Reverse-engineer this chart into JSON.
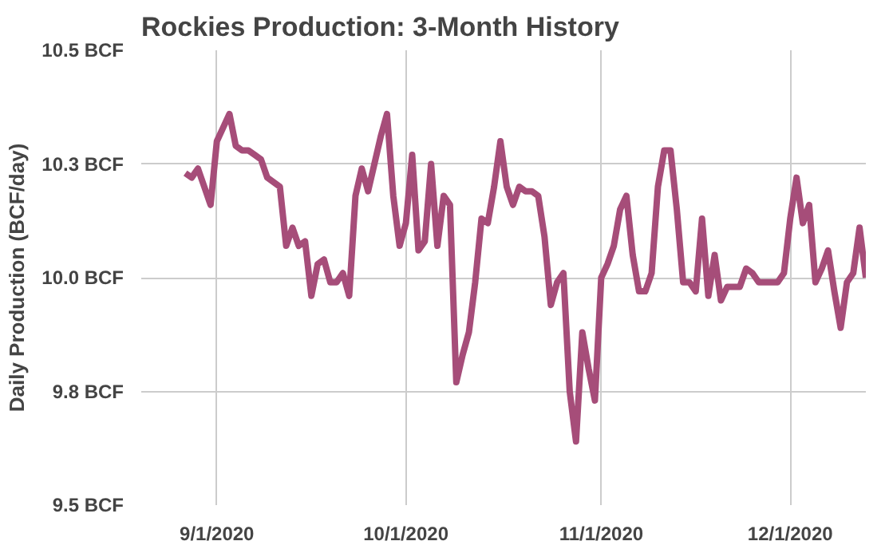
{
  "chart_data": {
    "type": "line",
    "title": "Rockies Production: 3-Month History",
    "ylabel": "Daily Production (BCF/day)",
    "x": [
      "2020-08-27",
      "2020-08-28",
      "2020-08-29",
      "2020-08-30",
      "2020-08-31",
      "2020-09-01",
      "2020-09-02",
      "2020-09-03",
      "2020-09-04",
      "2020-09-05",
      "2020-09-06",
      "2020-09-07",
      "2020-09-08",
      "2020-09-09",
      "2020-09-10",
      "2020-09-11",
      "2020-09-12",
      "2020-09-13",
      "2020-09-14",
      "2020-09-15",
      "2020-09-16",
      "2020-09-17",
      "2020-09-18",
      "2020-09-19",
      "2020-09-20",
      "2020-09-21",
      "2020-09-22",
      "2020-09-23",
      "2020-09-24",
      "2020-09-25",
      "2020-09-26",
      "2020-09-27",
      "2020-09-28",
      "2020-09-29",
      "2020-09-30",
      "2020-10-01",
      "2020-10-02",
      "2020-10-03",
      "2020-10-04",
      "2020-10-05",
      "2020-10-06",
      "2020-10-07",
      "2020-10-08",
      "2020-10-09",
      "2020-10-10",
      "2020-10-11",
      "2020-10-12",
      "2020-10-13",
      "2020-10-14",
      "2020-10-15",
      "2020-10-16",
      "2020-10-17",
      "2020-10-18",
      "2020-10-19",
      "2020-10-20",
      "2020-10-21",
      "2020-10-22",
      "2020-10-23",
      "2020-10-24",
      "2020-10-25",
      "2020-10-26",
      "2020-10-27",
      "2020-10-28",
      "2020-10-29",
      "2020-10-30",
      "2020-10-31",
      "2020-11-01",
      "2020-11-02",
      "2020-11-03",
      "2020-11-04",
      "2020-11-05",
      "2020-11-06",
      "2020-11-07",
      "2020-11-08",
      "2020-11-09",
      "2020-11-10",
      "2020-11-11",
      "2020-11-12",
      "2020-11-13",
      "2020-11-14",
      "2020-11-15",
      "2020-11-16",
      "2020-11-17",
      "2020-11-18",
      "2020-11-19",
      "2020-11-20",
      "2020-11-21",
      "2020-11-22",
      "2020-11-23",
      "2020-11-24",
      "2020-11-25",
      "2020-11-26",
      "2020-11-27",
      "2020-11-28",
      "2020-11-29",
      "2020-11-30",
      "2020-12-01",
      "2020-12-02",
      "2020-12-03",
      "2020-12-04",
      "2020-12-05",
      "2020-12-06",
      "2020-12-07",
      "2020-12-08",
      "2020-12-09",
      "2020-12-10",
      "2020-12-11",
      "2020-12-12",
      "2020-12-13"
    ],
    "series": [
      {
        "color": "#a64d79",
        "values": [
          10.23,
          10.22,
          10.24,
          10.2,
          10.16,
          10.3,
          10.33,
          10.36,
          10.29,
          10.28,
          10.28,
          10.27,
          10.26,
          10.22,
          10.21,
          10.2,
          10.07,
          10.11,
          10.07,
          10.08,
          9.96,
          10.03,
          10.04,
          9.99,
          9.99,
          10.01,
          9.96,
          10.18,
          10.24,
          10.19,
          10.25,
          10.31,
          10.36,
          10.18,
          10.07,
          10.12,
          10.27,
          10.06,
          10.08,
          10.25,
          10.07,
          10.18,
          10.16,
          9.77,
          9.83,
          9.88,
          9.99,
          10.13,
          10.12,
          10.2,
          10.3,
          10.2,
          10.16,
          10.2,
          10.19,
          10.19,
          10.18,
          10.09,
          9.94,
          9.99,
          10.01,
          9.75,
          9.64,
          9.88,
          9.8,
          9.73,
          10.0,
          10.03,
          10.07,
          10.15,
          10.18,
          10.05,
          9.97,
          9.97,
          10.01,
          10.2,
          10.28,
          10.28,
          10.15,
          9.99,
          9.99,
          9.97,
          10.13,
          9.96,
          10.05,
          9.95,
          9.98,
          9.98,
          9.98,
          10.02,
          10.01,
          9.99,
          9.99,
          9.99,
          9.99,
          10.01,
          10.13,
          10.22,
          10.12,
          10.16,
          9.99,
          10.02,
          10.06,
          9.97,
          9.89,
          9.99,
          10.01,
          10.11,
          10.0
        ]
      }
    ],
    "xlim": [
      "2020-08-20",
      "2020-12-13"
    ],
    "xticks": [
      {
        "value": "2020-09-01",
        "label": "9/1/2020"
      },
      {
        "value": "2020-10-01",
        "label": "10/1/2020"
      },
      {
        "value": "2020-11-01",
        "label": "11/1/2020"
      },
      {
        "value": "2020-12-01",
        "label": "12/1/2020"
      }
    ],
    "ylim": [
      9.5,
      10.5
    ],
    "yticks": [
      {
        "value": 9.5,
        "label": "9.5 BCF"
      },
      {
        "value": 9.75,
        "label": "9.8 BCF"
      },
      {
        "value": 10.0,
        "label": "10.0 BCF"
      },
      {
        "value": 10.25,
        "label": "10.3 BCF"
      },
      {
        "value": 10.5,
        "label": "10.5 BCF"
      }
    ],
    "grid": true,
    "marker": "none",
    "line_style": "solid"
  }
}
